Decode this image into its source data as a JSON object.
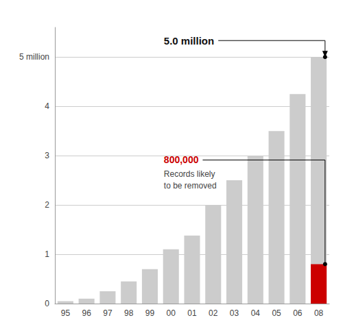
{
  "chart_data": {
    "type": "bar",
    "categories": [
      "95",
      "96",
      "97",
      "98",
      "99",
      "00",
      "01",
      "02",
      "03",
      "04",
      "05",
      "06",
      "08"
    ],
    "series": [
      {
        "color": "#cccccc",
        "values": [
          0.05,
          0.1,
          0.25,
          0.45,
          0.7,
          1.1,
          1.38,
          2.0,
          2.5,
          3.0,
          3.5,
          4.25,
          5.0
        ]
      },
      {
        "color": "#cc0000",
        "values": [
          null,
          null,
          null,
          null,
          null,
          null,
          null,
          null,
          null,
          null,
          null,
          null,
          0.8
        ]
      }
    ],
    "ylim": [
      0,
      5.6
    ],
    "yticks": [
      0,
      1,
      2,
      3,
      4,
      {
        "value": 5,
        "label": "5 million"
      }
    ],
    "grid": true,
    "annotations": [
      {
        "text": "5.0 million",
        "category": "08",
        "value": 5.0
      },
      {
        "text": "800,000",
        "color": "#cc0000",
        "category": "08",
        "value": 0.8,
        "subtext": "Records likely\nto be removed"
      }
    ]
  }
}
